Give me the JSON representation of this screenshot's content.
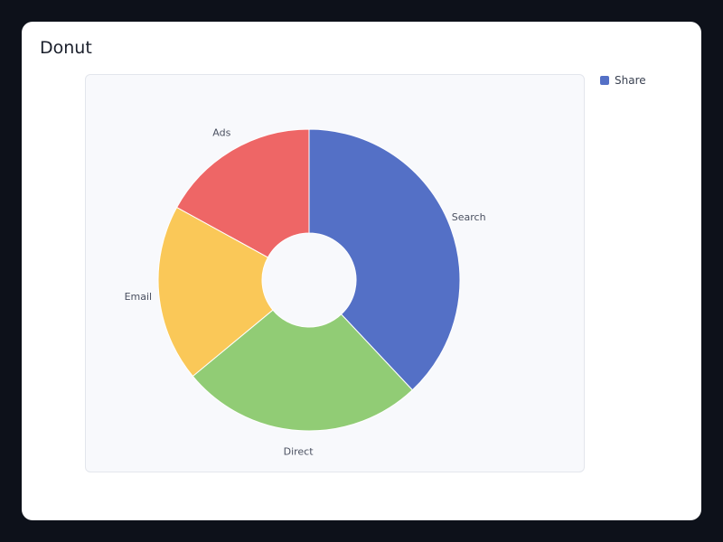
{
  "card": {
    "title": "Donut"
  },
  "legend": {
    "label": "Share",
    "color": "#5470c6"
  },
  "chart_data": {
    "type": "pie",
    "variant": "donut",
    "series_name": "Share",
    "slices": [
      {
        "label": "Search",
        "value": 38,
        "color": "#5470c6"
      },
      {
        "label": "Direct",
        "value": 26,
        "color": "#91cc75"
      },
      {
        "label": "Email",
        "value": 19,
        "color": "#fac858"
      },
      {
        "label": "Ads",
        "value": 17,
        "color": "#ee6666"
      }
    ],
    "legend_position": "top-right"
  }
}
